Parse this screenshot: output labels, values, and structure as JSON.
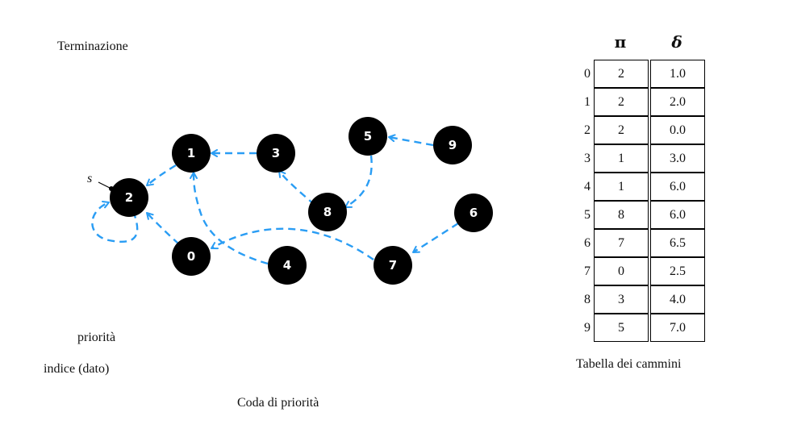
{
  "title": "Terminazione",
  "queue_priority_label": "priorità",
  "queue_index_label": "indice (dato)",
  "queue_caption": "Coda di priorità",
  "edge_color": "#2a9df4",
  "graph": {
    "source_label": "s",
    "nodes": [
      "0",
      "1",
      "2",
      "3",
      "4",
      "5",
      "6",
      "7",
      "8",
      "9"
    ],
    "edges": [
      {
        "from": "1",
        "to": "2"
      },
      {
        "from": "3",
        "to": "1"
      },
      {
        "from": "4",
        "to": "1"
      },
      {
        "from": "0",
        "to": "2"
      },
      {
        "from": "2",
        "to": "2"
      },
      {
        "from": "8",
        "to": "3"
      },
      {
        "from": "5",
        "to": "8"
      },
      {
        "from": "9",
        "to": "5"
      },
      {
        "from": "7",
        "to": "0"
      },
      {
        "from": "6",
        "to": "7"
      }
    ]
  },
  "paths_table": {
    "caption": "Tabella dei cammini",
    "pi_header": "π",
    "delta_header": "δ",
    "rows": [
      {
        "index": "0",
        "pi": "2",
        "delta": "1.0"
      },
      {
        "index": "1",
        "pi": "2",
        "delta": "2.0"
      },
      {
        "index": "2",
        "pi": "2",
        "delta": "0.0"
      },
      {
        "index": "3",
        "pi": "1",
        "delta": "3.0"
      },
      {
        "index": "4",
        "pi": "1",
        "delta": "6.0"
      },
      {
        "index": "5",
        "pi": "8",
        "delta": "6.0"
      },
      {
        "index": "6",
        "pi": "7",
        "delta": "6.5"
      },
      {
        "index": "7",
        "pi": "0",
        "delta": "2.5"
      },
      {
        "index": "8",
        "pi": "3",
        "delta": "4.0"
      },
      {
        "index": "9",
        "pi": "5",
        "delta": "7.0"
      }
    ]
  }
}
